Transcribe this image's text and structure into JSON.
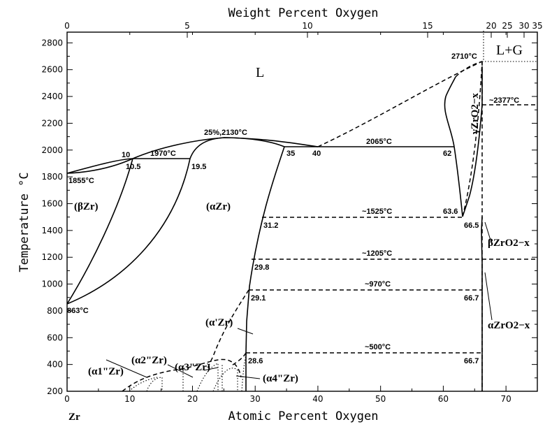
{
  "axes": {
    "x_bottom_title": "Atomic Percent Oxygen",
    "x_top_title": "Weight Percent Oxygen",
    "y_title": "Temperature °C",
    "element_label": "Zr",
    "x_bottom_ticks": [
      "0",
      "10",
      "20",
      "30",
      "40",
      "50",
      "60",
      "70"
    ],
    "x_top_ticks": [
      "0",
      "5",
      "10",
      "15",
      "20",
      "25",
      "30",
      "35"
    ],
    "y_ticks": [
      "200",
      "400",
      "600",
      "800",
      "1000",
      "1200",
      "1400",
      "1600",
      "1800",
      "2000",
      "2200",
      "2400",
      "2600",
      "2800"
    ],
    "x_range_at_pct": [
      0,
      75
    ],
    "y_range_c": [
      200,
      2880
    ]
  },
  "phases": {
    "liquid": "L",
    "liquid_gas": "L+G",
    "beta_zr": "(βZr)",
    "alpha_zr": "(αZr)",
    "alpha_prime_zr": "(α'Zr)",
    "alpha1_zr": "(α1\"Zr)",
    "alpha2_zr": "(α2\"Zr)",
    "alpha3_zr": "(α3\"Zr)",
    "alpha4_zr": "(α4\"Zr)",
    "gamma_zro2": "γZrO2−x",
    "beta_zro2": "βZrO2−x",
    "alpha_zro2": "αZrO2−x"
  },
  "annotations": {
    "t_2710": "2710°C",
    "t_2377": "~2377°C",
    "t_2130": "25%,2130°C",
    "t_2065": "2065°C",
    "t_1970": "1970°C",
    "t_1855": "1855°C",
    "t_1525": "~1525°C",
    "t_1205": "~1205°C",
    "t_970": "~970°C",
    "t_863": "863°C",
    "t_500": "~500°C",
    "c_10": "10",
    "c_10_5": "10.5",
    "c_19_5": "19.5",
    "c_35": "35",
    "c_40": "40",
    "c_62": "62",
    "c_63_6": "63.6",
    "c_66_5": "66.5",
    "c_31_2": "31.2",
    "c_29_8": "29.8",
    "c_29_1": "29.1",
    "c_66_7a": "66.7",
    "c_28_6": "28.6",
    "c_66_7b": "66.7"
  },
  "colors": {
    "ink": "#000000",
    "background": "#ffffff"
  }
}
